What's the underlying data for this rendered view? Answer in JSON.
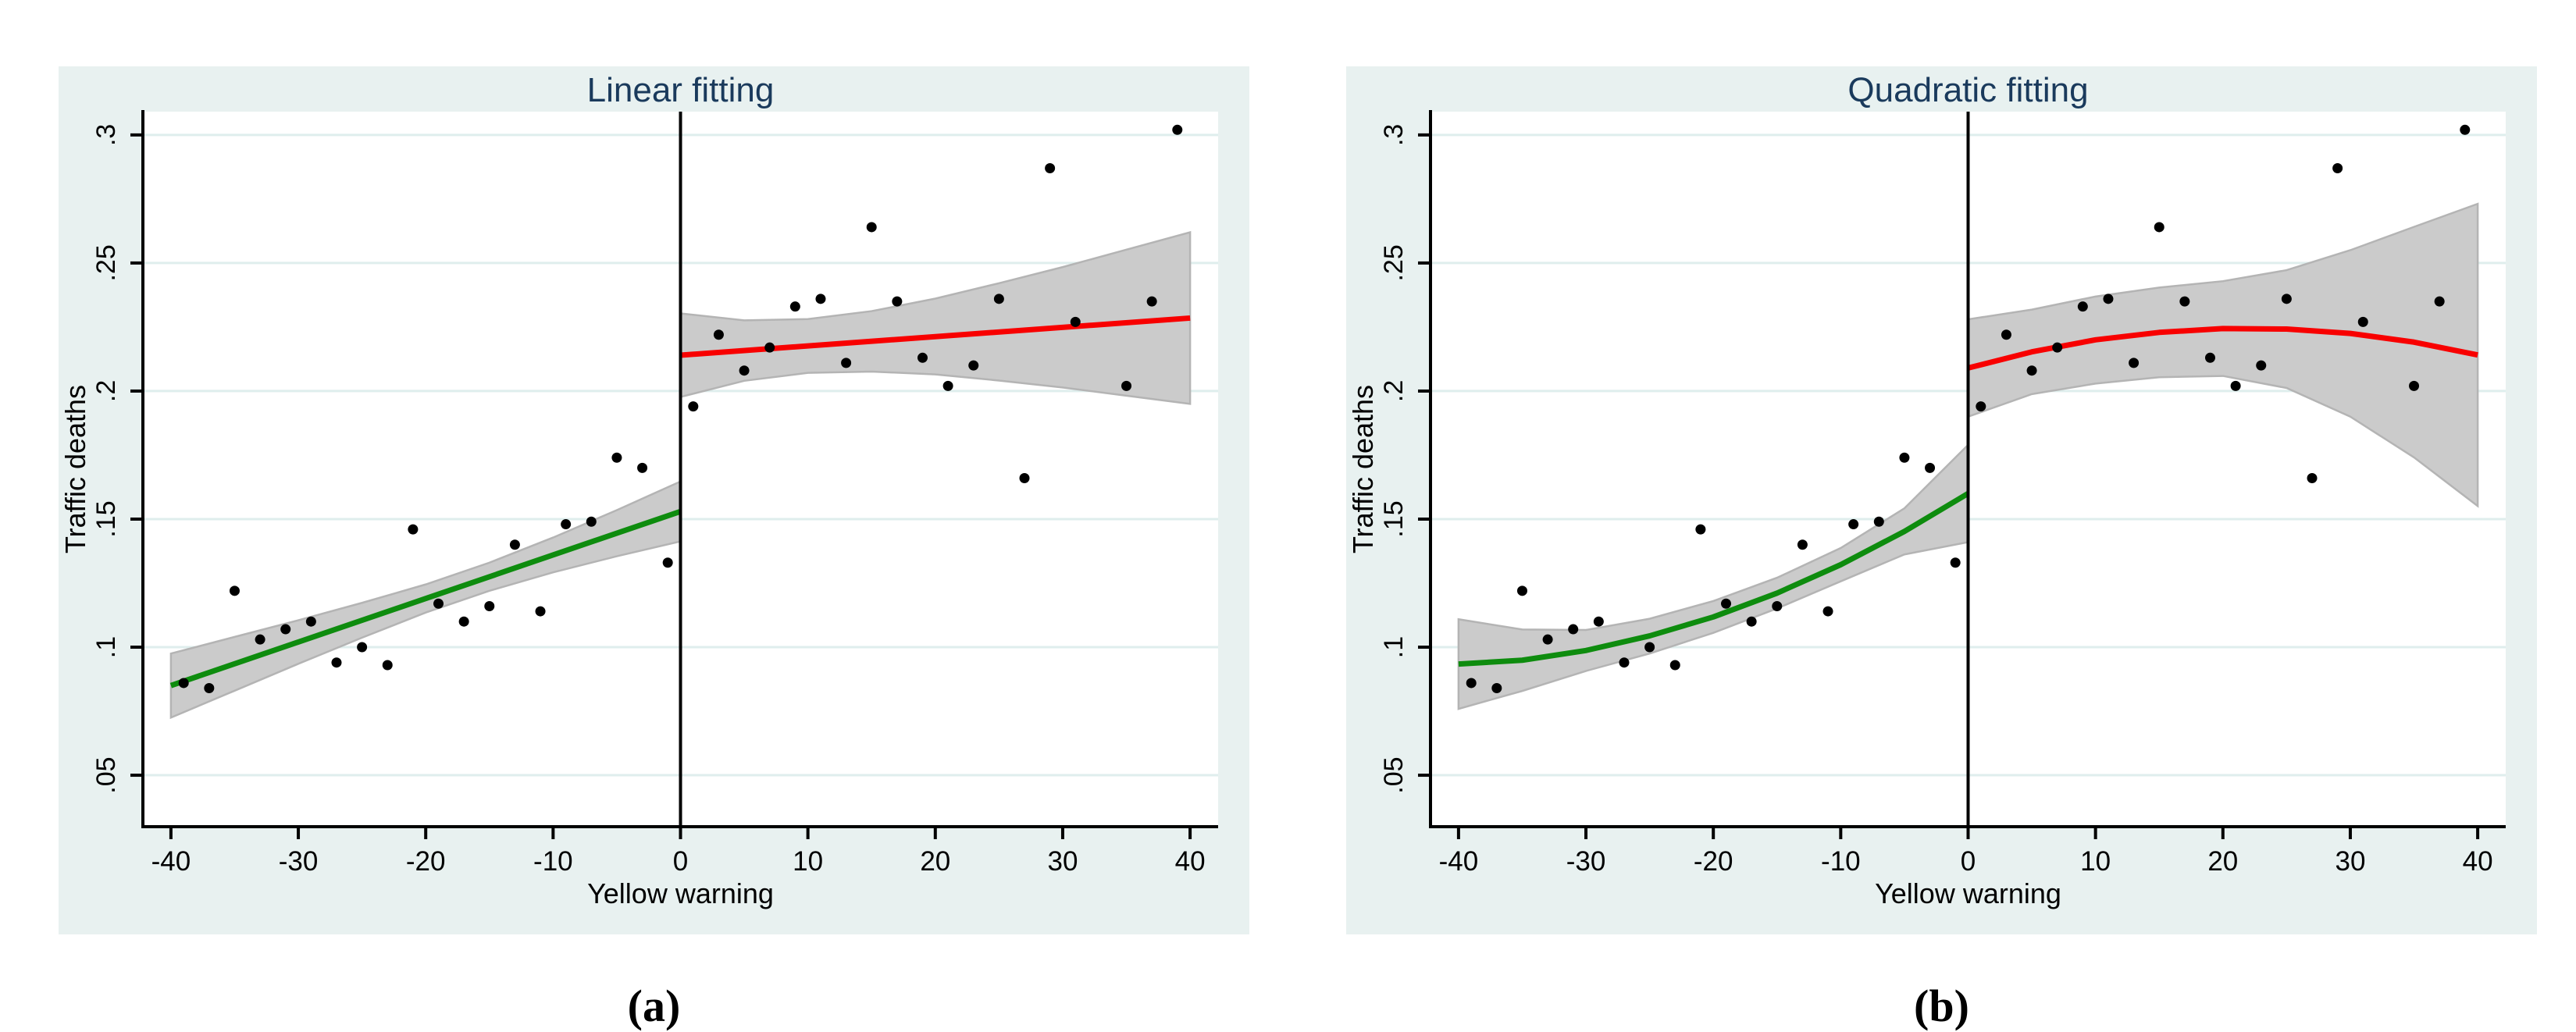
{
  "figure": {
    "description": "Two-panel regression discontinuity figure",
    "panel_captions": [
      "(a)",
      "(b)"
    ]
  },
  "style": {
    "page_bg": "#ffffff",
    "panel_bg": "#e8f1f0",
    "plot_bg": "#ffffff",
    "grid_color": "#dfeeed",
    "axis_color": "#000000",
    "title_color": "#1a3a5c",
    "dot_color": "#000000",
    "left_fit_color": "#0e8c0e",
    "right_fit_color": "#f80000",
    "band_fill": "#cbcbcb",
    "band_edge": "#b4b4b4",
    "cutoff_color": "#000000"
  },
  "chart_data": [
    {
      "type": "scatter",
      "title": "Linear fitting",
      "caption": "(a)",
      "xlabel": "Yellow warning",
      "ylabel": "Traffic deaths",
      "legend_position": "none",
      "grid": "horizontal",
      "xlim": [
        -42.2,
        42.2
      ],
      "ylim": [
        0.0299,
        0.3091
      ],
      "cutoff_x": 0,
      "x_ticks": [
        {
          "v": -40,
          "label": "-40"
        },
        {
          "v": -30,
          "label": "-30"
        },
        {
          "v": -20,
          "label": "-20"
        },
        {
          "v": -10,
          "label": "-10"
        },
        {
          "v": 0,
          "label": "0"
        },
        {
          "v": 10,
          "label": "10"
        },
        {
          "v": 20,
          "label": "20"
        },
        {
          "v": 30,
          "label": "30"
        },
        {
          "v": 40,
          "label": "40"
        }
      ],
      "y_ticks": [
        {
          "v": 0.05,
          "label": ".05"
        },
        {
          "v": 0.1,
          "label": ".1"
        },
        {
          "v": 0.15,
          "label": ".15"
        },
        {
          "v": 0.2,
          "label": ".2"
        },
        {
          "v": 0.25,
          "label": ".25"
        },
        {
          "v": 0.3,
          "label": ".3"
        }
      ],
      "points": [
        [
          -39,
          0.086
        ],
        [
          -37,
          0.084
        ],
        [
          -35,
          0.122
        ],
        [
          -33,
          0.103
        ],
        [
          -31,
          0.107
        ],
        [
          -29,
          0.11
        ],
        [
          -27,
          0.094
        ],
        [
          -25,
          0.1
        ],
        [
          -23,
          0.093
        ],
        [
          -21,
          0.146
        ],
        [
          -19,
          0.117
        ],
        [
          -17,
          0.11
        ],
        [
          -15,
          0.116
        ],
        [
          -13,
          0.14
        ],
        [
          -11,
          0.114
        ],
        [
          -9,
          0.148
        ],
        [
          -7,
          0.149
        ],
        [
          -5,
          0.174
        ],
        [
          -3,
          0.17
        ],
        [
          -1,
          0.133
        ],
        [
          1,
          0.194
        ],
        [
          3,
          0.222
        ],
        [
          5,
          0.208
        ],
        [
          7,
          0.217
        ],
        [
          9,
          0.233
        ],
        [
          11,
          0.236
        ],
        [
          13,
          0.211
        ],
        [
          15,
          0.264
        ],
        [
          17,
          0.235
        ],
        [
          19,
          0.213
        ],
        [
          21,
          0.202
        ],
        [
          23,
          0.21
        ],
        [
          25,
          0.236
        ],
        [
          27,
          0.166
        ],
        [
          29,
          0.287
        ],
        [
          31,
          0.227
        ],
        [
          35,
          0.202
        ],
        [
          37,
          0.235
        ],
        [
          39,
          0.302
        ]
      ],
      "fit_left": {
        "name": "linear fit left of cutoff",
        "points": [
          [
            -40,
            0.085
          ],
          [
            0,
            0.153
          ]
        ]
      },
      "band_left": [
        [
          -40,
          0.0725,
          0.0975
        ],
        [
          -35,
          0.083,
          0.104
        ],
        [
          -30,
          0.0935,
          0.1105
        ],
        [
          -25,
          0.1037,
          0.1173
        ],
        [
          -20,
          0.1135,
          0.1245
        ],
        [
          -15,
          0.122,
          0.133
        ],
        [
          -10,
          0.1292,
          0.1428
        ],
        [
          -5,
          0.1355,
          0.1535
        ],
        [
          0,
          0.1413,
          0.1647
        ]
      ],
      "fit_right": {
        "name": "linear fit right of cutoff",
        "points": [
          [
            0,
            0.214
          ],
          [
            40,
            0.2285
          ]
        ]
      },
      "band_right": [
        [
          0,
          0.1977,
          0.2303
        ],
        [
          5,
          0.204,
          0.2276
        ],
        [
          10,
          0.2071,
          0.2281
        ],
        [
          15,
          0.2076,
          0.2312
        ],
        [
          20,
          0.2065,
          0.2361
        ],
        [
          25,
          0.2041,
          0.2421
        ],
        [
          30,
          0.2014,
          0.2484
        ],
        [
          35,
          0.1982,
          0.2552
        ],
        [
          40,
          0.195,
          0.262
        ]
      ]
    },
    {
      "type": "scatter",
      "title": "Quadratic fitting",
      "caption": "(b)",
      "xlabel": "Yellow warning",
      "ylabel": "Traffic deaths",
      "legend_position": "none",
      "grid": "horizontal",
      "xlim": [
        -42.2,
        42.2
      ],
      "ylim": [
        0.0299,
        0.3091
      ],
      "cutoff_x": 0,
      "x_ticks": [
        {
          "v": -40,
          "label": "-40"
        },
        {
          "v": -30,
          "label": "-30"
        },
        {
          "v": -20,
          "label": "-20"
        },
        {
          "v": -10,
          "label": "-10"
        },
        {
          "v": 0,
          "label": "0"
        },
        {
          "v": 10,
          "label": "10"
        },
        {
          "v": 20,
          "label": "20"
        },
        {
          "v": 30,
          "label": "30"
        },
        {
          "v": 40,
          "label": "40"
        }
      ],
      "y_ticks": [
        {
          "v": 0.05,
          "label": ".05"
        },
        {
          "v": 0.1,
          "label": ".1"
        },
        {
          "v": 0.15,
          "label": ".15"
        },
        {
          "v": 0.2,
          "label": ".2"
        },
        {
          "v": 0.25,
          "label": ".25"
        },
        {
          "v": 0.3,
          "label": ".3"
        }
      ],
      "points": [
        [
          -39,
          0.086
        ],
        [
          -37,
          0.084
        ],
        [
          -35,
          0.122
        ],
        [
          -33,
          0.103
        ],
        [
          -31,
          0.107
        ],
        [
          -29,
          0.11
        ],
        [
          -27,
          0.094
        ],
        [
          -25,
          0.1
        ],
        [
          -23,
          0.093
        ],
        [
          -21,
          0.146
        ],
        [
          -19,
          0.117
        ],
        [
          -17,
          0.11
        ],
        [
          -15,
          0.116
        ],
        [
          -13,
          0.14
        ],
        [
          -11,
          0.114
        ],
        [
          -9,
          0.148
        ],
        [
          -7,
          0.149
        ],
        [
          -5,
          0.174
        ],
        [
          -3,
          0.17
        ],
        [
          -1,
          0.133
        ],
        [
          1,
          0.194
        ],
        [
          3,
          0.222
        ],
        [
          5,
          0.208
        ],
        [
          7,
          0.217
        ],
        [
          9,
          0.233
        ],
        [
          11,
          0.236
        ],
        [
          13,
          0.211
        ],
        [
          15,
          0.264
        ],
        [
          17,
          0.235
        ],
        [
          19,
          0.213
        ],
        [
          21,
          0.202
        ],
        [
          23,
          0.21
        ],
        [
          25,
          0.236
        ],
        [
          27,
          0.166
        ],
        [
          29,
          0.287
        ],
        [
          31,
          0.227
        ],
        [
          35,
          0.202
        ],
        [
          37,
          0.235
        ],
        [
          39,
          0.302
        ]
      ],
      "fit_left": {
        "name": "quadratic fit left of cutoff",
        "points": [
          [
            -40,
            0.0934
          ],
          [
            -35,
            0.0949
          ],
          [
            -30,
            0.0987
          ],
          [
            -25,
            0.1044
          ],
          [
            -20,
            0.1118
          ],
          [
            -15,
            0.1211
          ],
          [
            -10,
            0.1322
          ],
          [
            -5,
            0.1452
          ],
          [
            0,
            0.16
          ]
        ]
      },
      "band_left": [
        [
          -40,
          0.0759,
          0.1109
        ],
        [
          -35,
          0.0829,
          0.1069
        ],
        [
          -30,
          0.0907,
          0.1067
        ],
        [
          -25,
          0.0975,
          0.1111
        ],
        [
          -20,
          0.1056,
          0.118
        ],
        [
          -15,
          0.1151,
          0.1271
        ],
        [
          -10,
          0.1257,
          0.1387
        ],
        [
          -5,
          0.1362,
          0.1542
        ],
        [
          0,
          0.141,
          0.179
        ]
      ],
      "fit_right": {
        "name": "quadratic fit right of cutoff",
        "points": [
          [
            0,
            0.209
          ],
          [
            5,
            0.2153
          ],
          [
            10,
            0.22
          ],
          [
            15,
            0.2229
          ],
          [
            20,
            0.2244
          ],
          [
            25,
            0.2242
          ],
          [
            30,
            0.2225
          ],
          [
            35,
            0.2191
          ],
          [
            40,
            0.2141
          ]
        ]
      },
      "band_right": [
        [
          0,
          0.19,
          0.228
        ],
        [
          5,
          0.1988,
          0.2318
        ],
        [
          10,
          0.2029,
          0.2369
        ],
        [
          15,
          0.2054,
          0.2404
        ],
        [
          20,
          0.2059,
          0.2429
        ],
        [
          25,
          0.2012,
          0.2472
        ],
        [
          30,
          0.19,
          0.255
        ],
        [
          35,
          0.1741,
          0.2641
        ],
        [
          40,
          0.1551,
          0.2731
        ]
      ]
    }
  ]
}
